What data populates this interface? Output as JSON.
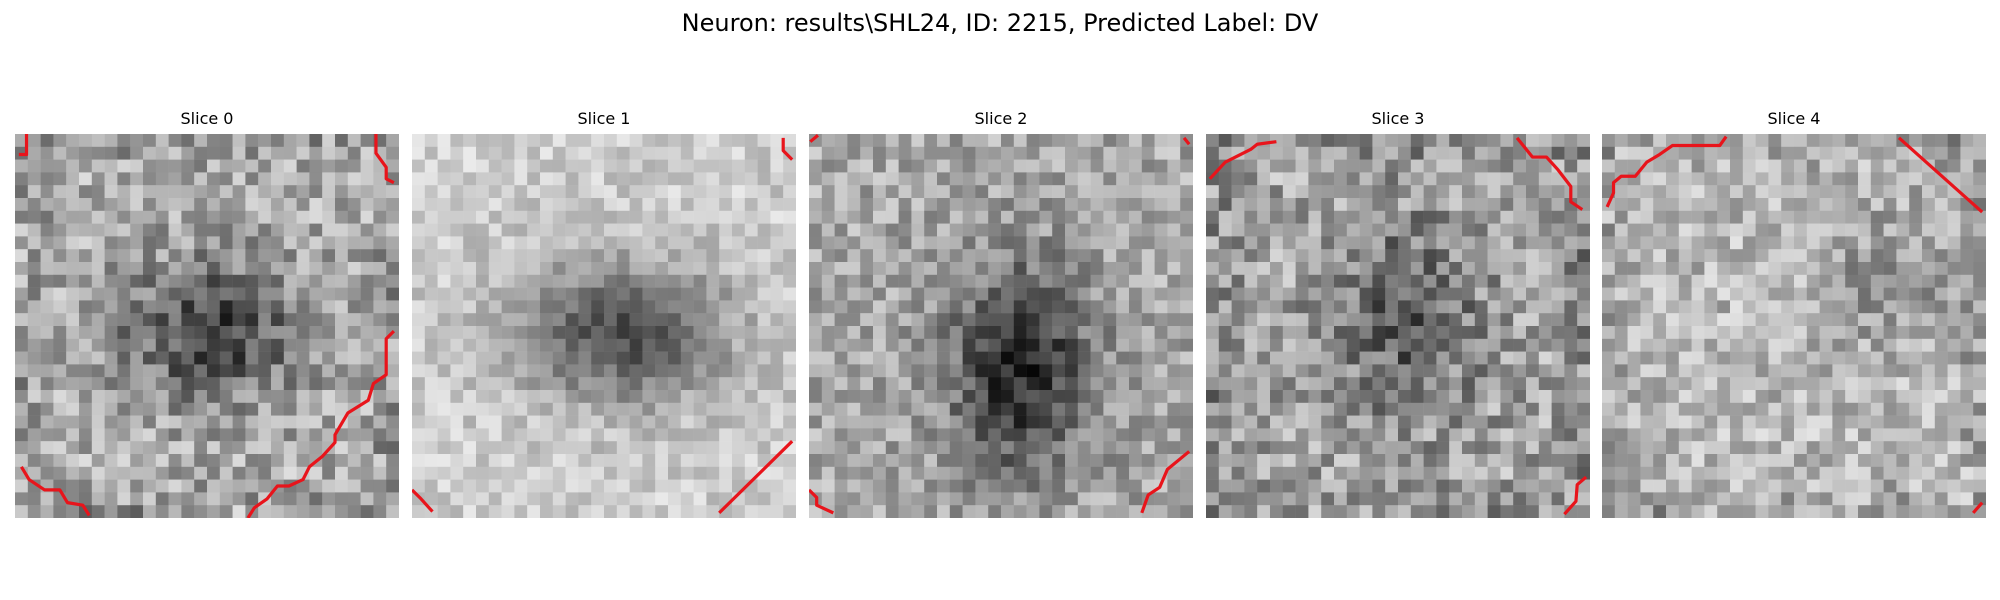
{
  "figure": {
    "title": "Neuron: results\\SHL24, ID: 2215, Predicted Label: DV"
  },
  "panels": [
    {
      "title": "Slice 0"
    },
    {
      "title": "Slice 1"
    },
    {
      "title": "Slice 2"
    },
    {
      "title": "Slice 3"
    },
    {
      "title": "Slice 4"
    }
  ],
  "colors": {
    "contour": "#e8141b",
    "background": "#ffffff"
  },
  "image": {
    "grid_cells": 30,
    "colormap": "grayscale"
  }
}
